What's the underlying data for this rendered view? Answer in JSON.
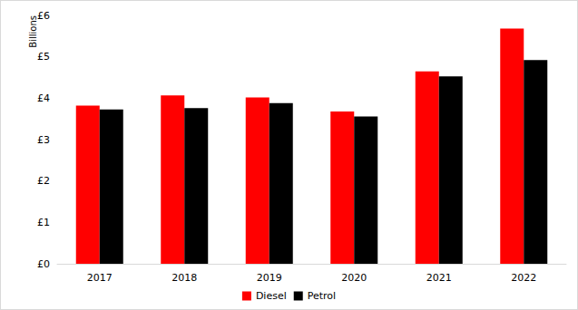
{
  "chart_data": {
    "type": "bar",
    "ylabel": "Billions",
    "categories": [
      "2017",
      "2018",
      "2019",
      "2020",
      "2021",
      "2022"
    ],
    "series": [
      {
        "name": "Diesel",
        "color": "#ff0000",
        "values": [
          3.82,
          4.07,
          4.02,
          3.68,
          4.65,
          5.68
        ]
      },
      {
        "name": "Petrol",
        "color": "#000000",
        "values": [
          3.73,
          3.76,
          3.88,
          3.56,
          4.53,
          4.92
        ]
      }
    ],
    "ylim": [
      0,
      6
    ],
    "yticks": [
      {
        "value": 0,
        "label": "£0"
      },
      {
        "value": 1,
        "label": "£1"
      },
      {
        "value": 2,
        "label": "£2"
      },
      {
        "value": 3,
        "label": "£3"
      },
      {
        "value": 4,
        "label": "£4"
      },
      {
        "value": 5,
        "label": "£5"
      },
      {
        "value": 6,
        "label": "£6"
      }
    ],
    "grid": false,
    "legend": "bottom"
  }
}
